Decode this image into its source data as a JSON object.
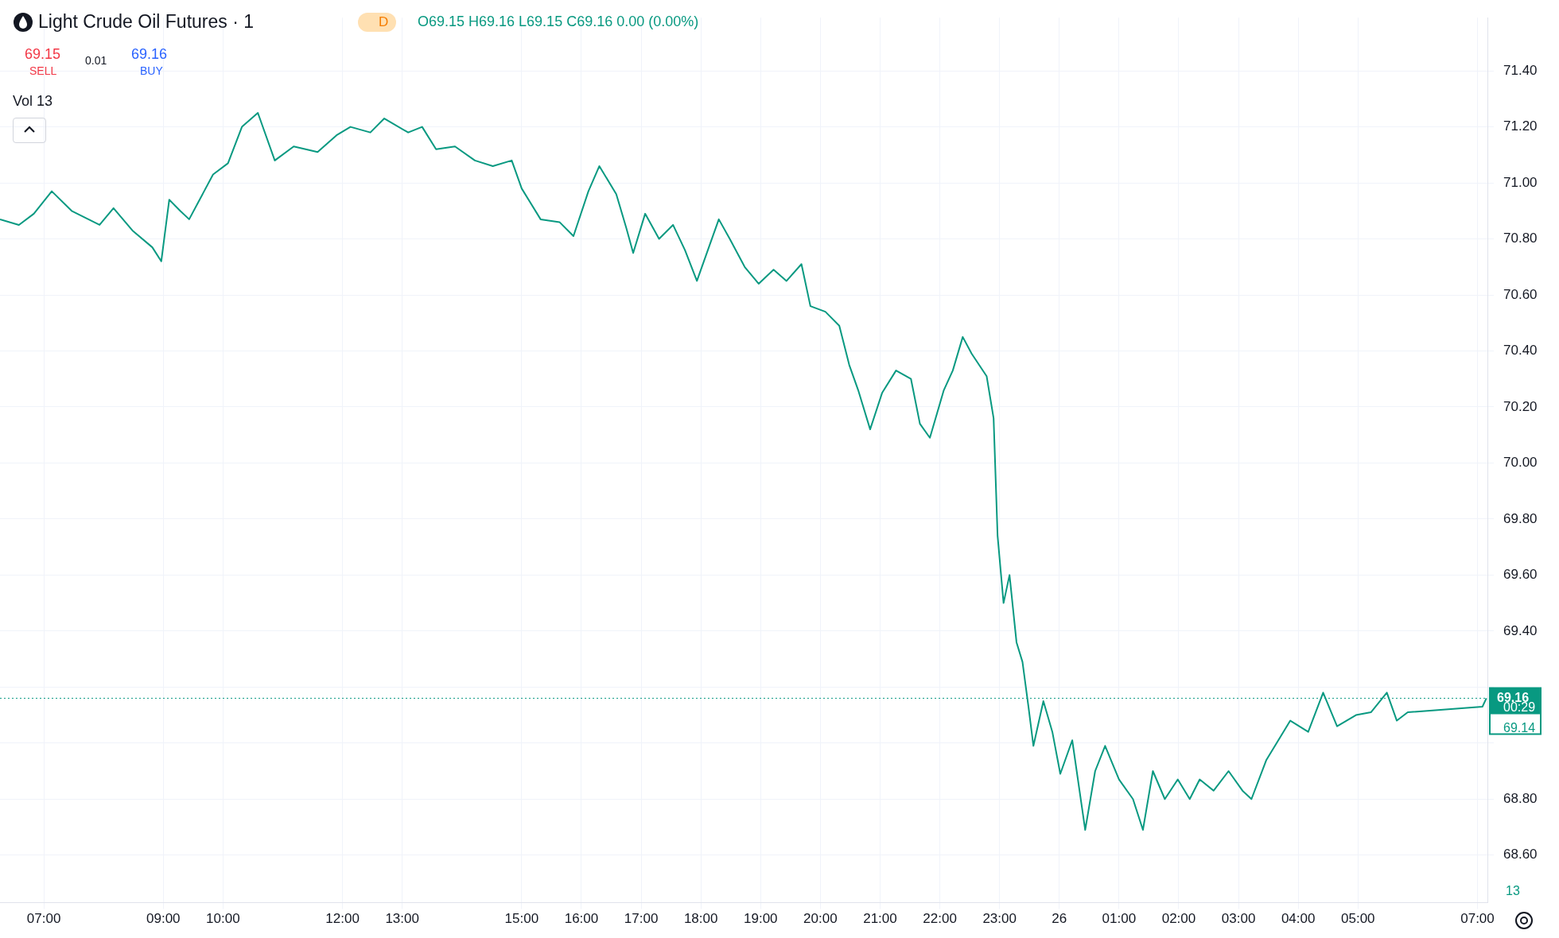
{
  "chart_data": {
    "type": "line",
    "title": "Light Crude Oil Futures · 1",
    "annotations": [
      "D",
      "O69.15 H69.16 L69.15 C69.16 0.00 (0.00%)",
      "69.15",
      "SELL",
      "0.01",
      "69.16",
      "BUY",
      "Vol 13",
      "00:29",
      "69.14",
      "13"
    ],
    "x": [
      "--11-25T06:16",
      "--11-25T06:35",
      "--11-25T06:50",
      "--11-25T07:08",
      "--11-25T07:28",
      "--11-25T07:56",
      "--11-25T08:10",
      "--11-25T08:29",
      "--11-25T08:49",
      "--11-25T08:58",
      "--11-25T09:06",
      "--11-25T09:17",
      "--11-25T09:26",
      "--11-25T09:41",
      "--11-25T09:50",
      "--11-25T10:05",
      "--11-25T10:19",
      "--11-25T10:35",
      "--11-25T10:52",
      "--11-25T11:11",
      "--11-25T11:35",
      "--11-25T11:54",
      "--11-25T12:08",
      "--11-25T12:28",
      "--11-25T12:42",
      "--11-25T13:06",
      "--11-25T13:20",
      "--11-25T13:34",
      "--11-25T13:53",
      "--11-25T14:13",
      "--11-25T14:31",
      "--11-25T14:50",
      "--11-25T15:00",
      "--11-25T15:19",
      "--11-25T15:38",
      "--11-25T15:52",
      "--11-25T16:07",
      "--11-25T16:18",
      "--11-25T16:35",
      "--11-25T16:45",
      "--11-25T16:52",
      "--11-25T17:04",
      "--11-25T17:18",
      "--11-25T17:32",
      "--11-25T17:44",
      "--11-25T17:56",
      "--11-25T18:06",
      "--11-25T18:18",
      "--11-25T18:29",
      "--11-25T18:44",
      "--11-25T18:58",
      "--11-25T19:13",
      "--11-25T19:26",
      "--11-25T19:41",
      "--11-25T19:50",
      "--11-25T20:05",
      "--11-25T20:19",
      "--11-25T20:29",
      "--11-25T20:38",
      "--11-25T20:50",
      "--11-25T21:02",
      "--11-25T21:16",
      "--11-25T21:31",
      "--11-25T21:40",
      "--11-25T21:50",
      "--11-25T22:04",
      "--11-25T22:13",
      "--11-25T22:23",
      "--11-25T22:32",
      "--11-25T22:47",
      "--11-25T22:54",
      "--11-25T22:58",
      "--11-25T23:04",
      "--11-25T23:10",
      "--11-25T23:17",
      "--11-25T23:23",
      "--11-25T23:29",
      "--11-25T23:34",
      "--11-25T23:44",
      "--11-25T23:53",
      "--11-26T00:01",
      "--11-26T00:13",
      "--11-26T00:26",
      "--11-26T00:36",
      "--11-26T00:46",
      "--11-26T01:00",
      "--11-26T01:14",
      "--11-26T01:24",
      "--11-26T01:34",
      "--11-26T01:46",
      "--11-26T01:59",
      "--11-26T02:11",
      "--11-26T02:21",
      "--11-26T02:35",
      "--11-26T02:50",
      "--11-26T03:04",
      "--11-26T03:13",
      "--11-26T03:28",
      "--11-26T03:52",
      "--11-26T04:10",
      "--11-26T04:25",
      "--11-26T04:39",
      "--11-26T04:58",
      "--11-26T05:13",
      "--11-26T05:29",
      "--11-26T05:39",
      "--11-26T05:50",
      "--11-26T07:05",
      "--11-26T07:09"
    ],
    "series": [
      {
        "color": "#089981",
        "values": [
          70.87,
          70.85,
          70.89,
          70.97,
          70.9,
          70.85,
          70.91,
          70.83,
          70.77,
          70.72,
          70.94,
          70.9,
          70.87,
          70.97,
          71.03,
          71.07,
          71.2,
          71.25,
          71.08,
          71.13,
          71.11,
          71.17,
          71.2,
          71.18,
          71.23,
          71.18,
          71.2,
          71.12,
          71.13,
          71.08,
          71.06,
          71.08,
          70.98,
          70.87,
          70.86,
          70.81,
          70.97,
          71.06,
          70.96,
          70.84,
          70.75,
          70.89,
          70.8,
          70.85,
          70.76,
          70.65,
          70.75,
          70.87,
          70.8,
          70.7,
          70.64,
          70.69,
          70.65,
          70.71,
          70.56,
          70.54,
          70.49,
          70.35,
          70.26,
          70.12,
          70.25,
          70.33,
          70.3,
          70.14,
          70.09,
          70.26,
          70.33,
          70.45,
          70.39,
          70.31,
          70.16,
          69.74,
          69.5,
          69.6,
          69.36,
          69.29,
          69.13,
          68.99,
          69.15,
          69.04,
          68.89,
          69.01,
          68.69,
          68.9,
          68.99,
          68.87,
          68.8,
          68.69,
          68.9,
          68.8,
          68.87,
          68.8,
          68.87,
          68.83,
          68.9,
          68.83,
          68.8,
          68.94,
          69.08,
          69.04,
          69.18,
          69.06,
          69.1,
          69.11,
          69.18,
          69.08,
          69.11,
          69.13,
          69.16
        ]
      }
    ],
    "xlim": [
      "--11-25T06:16",
      "--11-26T07:10"
    ],
    "xticks": [
      {
        "value": "--11-25T07:00",
        "label": "07:00"
      },
      {
        "value": "--11-25T09:00",
        "label": "09:00"
      },
      {
        "value": "--11-25T10:00",
        "label": "10:00"
      },
      {
        "value": "--11-25T12:00",
        "label": "12:00"
      },
      {
        "value": "--11-25T13:00",
        "label": "13:00"
      },
      {
        "value": "--11-25T15:00",
        "label": "15:00"
      },
      {
        "value": "--11-25T16:00",
        "label": "16:00"
      },
      {
        "value": "--11-25T17:00",
        "label": "17:00"
      },
      {
        "value": "--11-25T18:00",
        "label": "18:00"
      },
      {
        "value": "--11-25T19:00",
        "label": "19:00"
      },
      {
        "value": "--11-25T20:00",
        "label": "20:00"
      },
      {
        "value": "--11-25T21:00",
        "label": "21:00"
      },
      {
        "value": "--11-25T22:00",
        "label": "22:00"
      },
      {
        "value": "--11-25T23:00",
        "label": "23:00"
      },
      {
        "value": "--11-26T00:00",
        "label": "26"
      },
      {
        "value": "--11-26T01:00",
        "label": "01:00"
      },
      {
        "value": "--11-26T02:00",
        "label": "02:00"
      },
      {
        "value": "--11-26T03:00",
        "label": "03:00"
      },
      {
        "value": "--11-26T04:00",
        "label": "04:00"
      },
      {
        "value": "--11-26T05:00",
        "label": "05:00"
      },
      {
        "value": "--11-26T07:00",
        "label": "07:00"
      }
    ],
    "ylim": [
      68.43,
      71.59
    ],
    "yticks": [
      {
        "value": 68.6,
        "label": "68.60"
      },
      {
        "value": 68.8,
        "label": "68.80"
      },
      {
        "value": 69.0,
        "label": null
      },
      {
        "value": 69.2,
        "label": null
      },
      {
        "value": 69.4,
        "label": "69.40"
      },
      {
        "value": 69.6,
        "label": "69.60"
      },
      {
        "value": 69.8,
        "label": "69.80"
      },
      {
        "value": 70.0,
        "label": "70.00"
      },
      {
        "value": 70.2,
        "label": "70.20"
      },
      {
        "value": 70.4,
        "label": "70.40"
      },
      {
        "value": 70.6,
        "label": "70.60"
      },
      {
        "value": 70.8,
        "label": "70.80"
      },
      {
        "value": 71.0,
        "label": "71.00"
      },
      {
        "value": 71.2,
        "label": "71.20"
      },
      {
        "value": 71.4,
        "label": "71.40"
      }
    ],
    "ref_lines": [
      {
        "axis": "y",
        "value": 69.16,
        "label": "69.16",
        "color": "#089981",
        "line_style": "dotted"
      }
    ],
    "grid": true,
    "legend": false,
    "marker": "none",
    "line_style": "solid"
  }
}
